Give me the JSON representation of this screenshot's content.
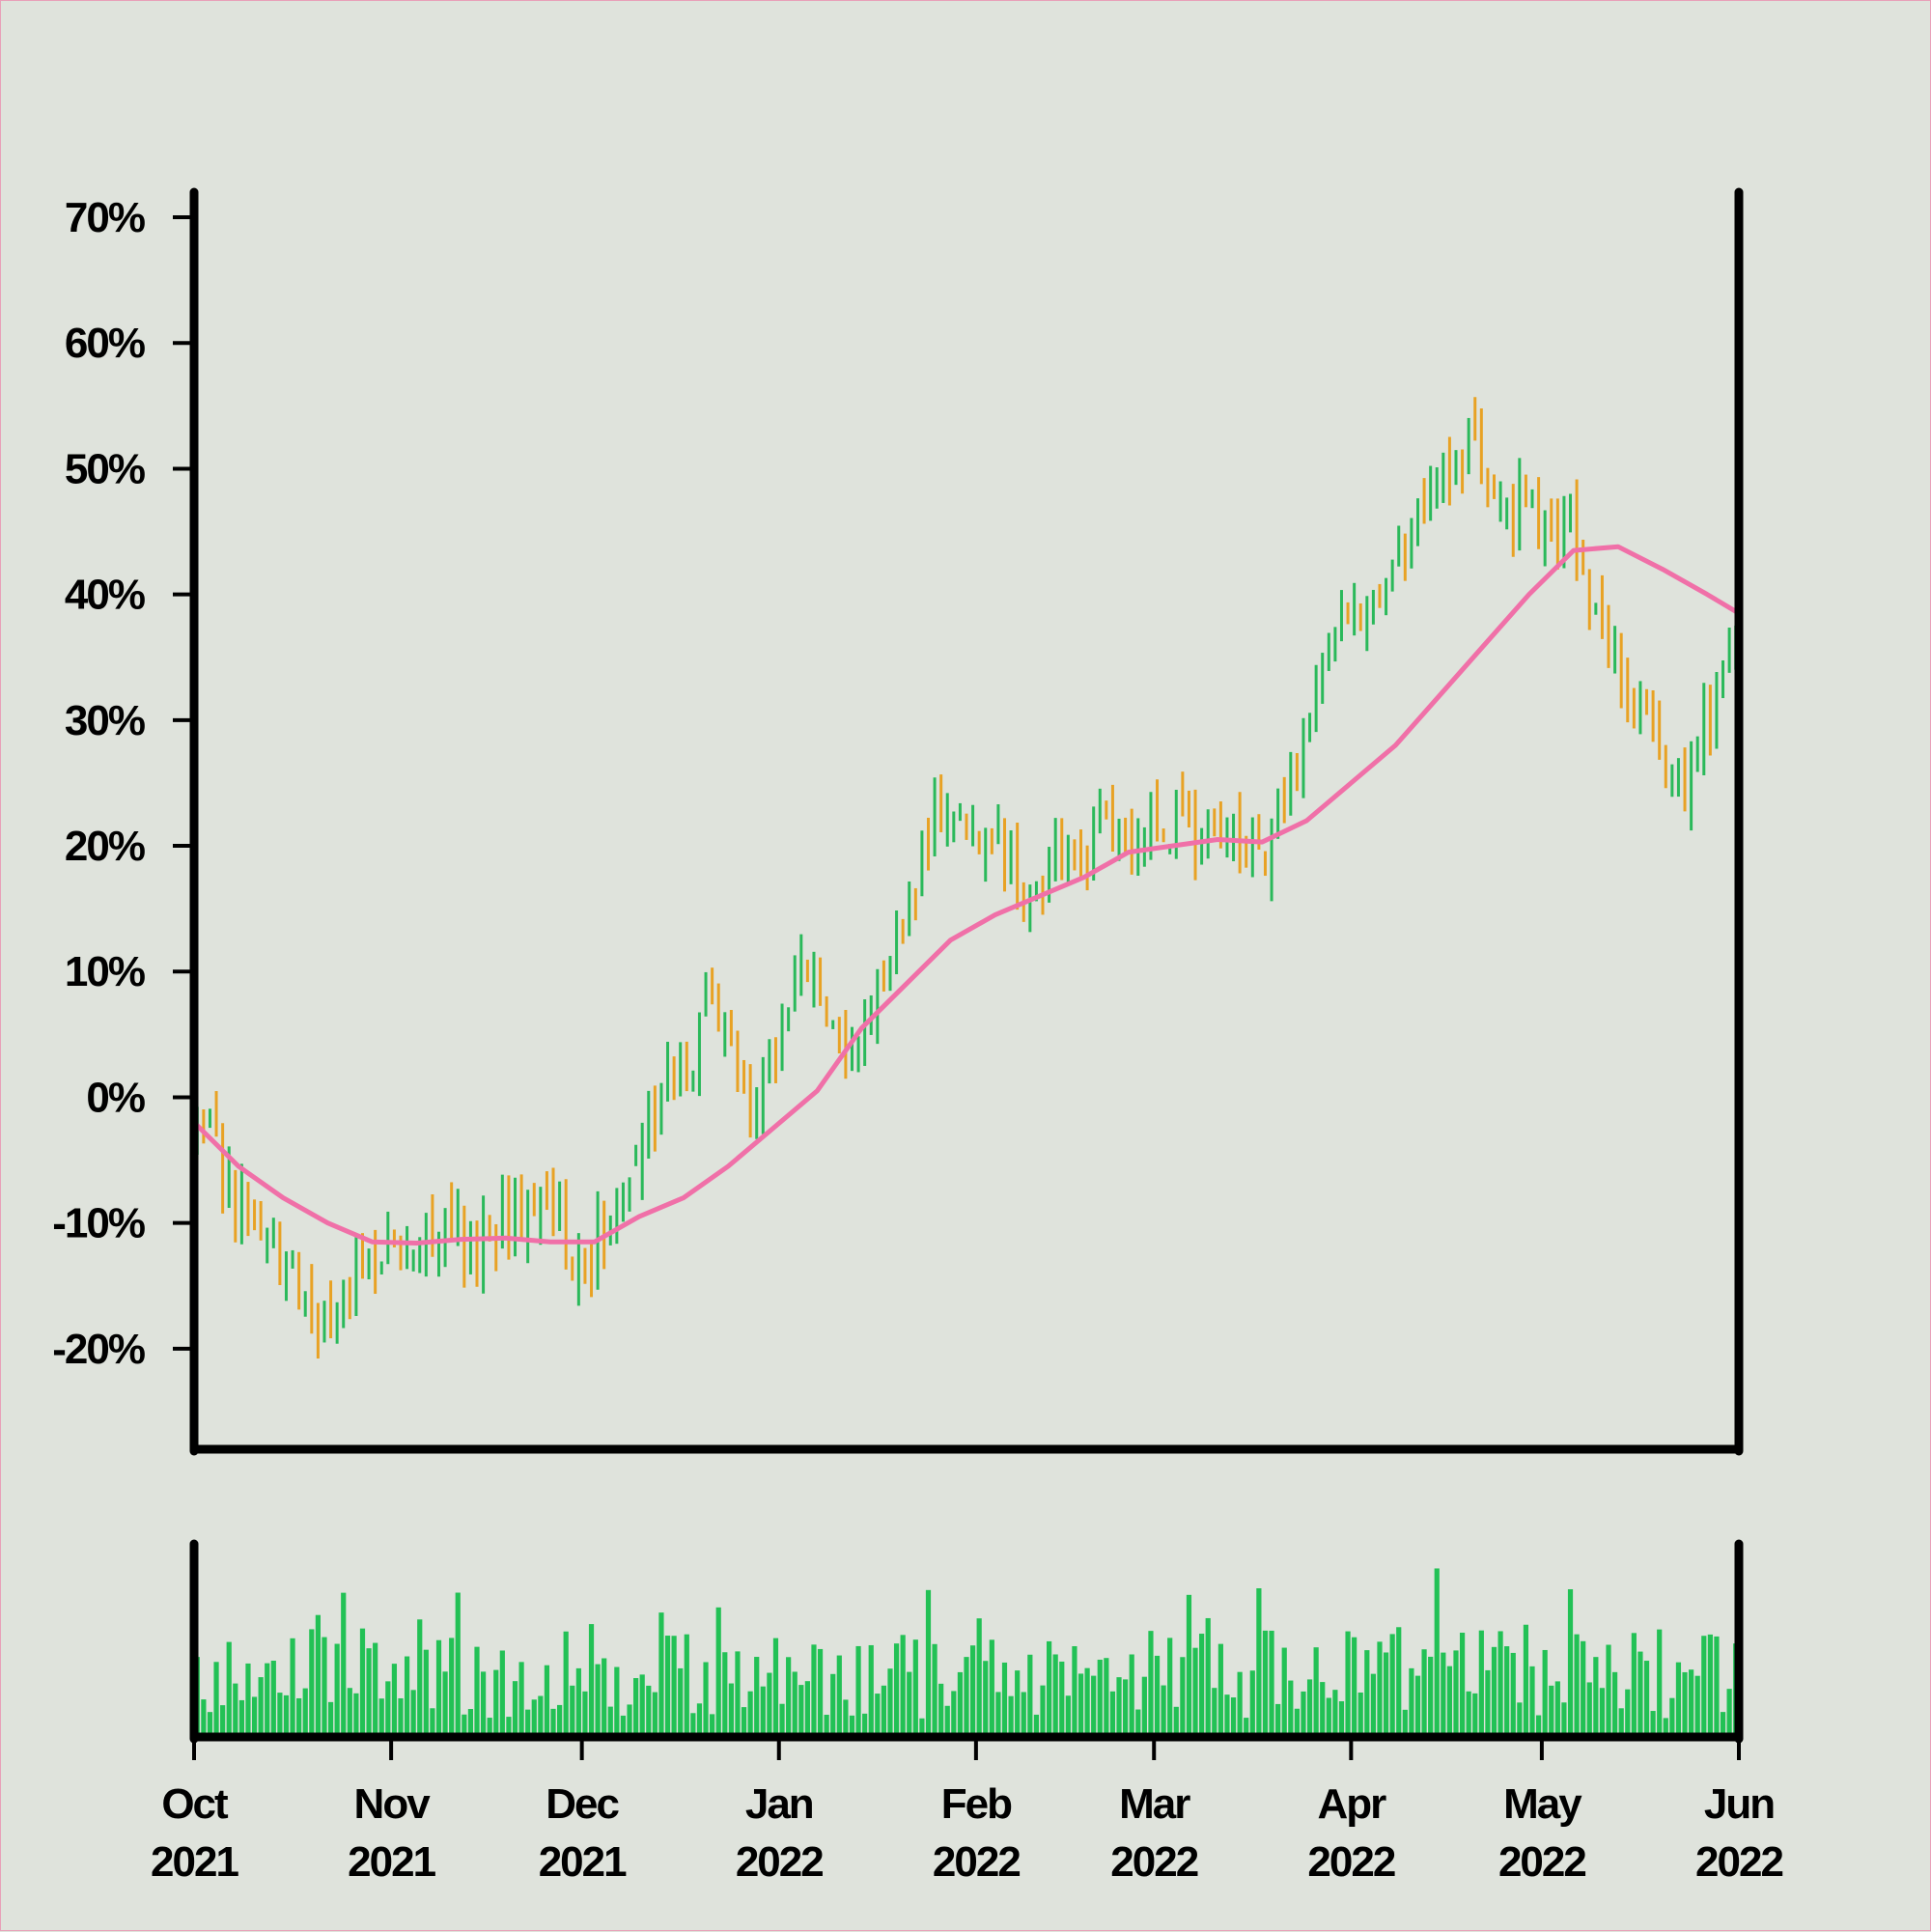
{
  "chart_data": {
    "type": "ohlc",
    "title": "",
    "xlabel": "",
    "ylabel": "",
    "x_range": [
      "2021-10-01",
      "2022-06-01"
    ],
    "y_range_pct": [
      -28,
      72
    ],
    "y_ticks": [
      {
        "value": 70,
        "label": "70%"
      },
      {
        "value": 60,
        "label": "60%"
      },
      {
        "value": 50,
        "label": "50%"
      },
      {
        "value": 40,
        "label": "40%"
      },
      {
        "value": 30,
        "label": "30%"
      },
      {
        "value": 20,
        "label": "20%"
      },
      {
        "value": 10,
        "label": "10%"
      },
      {
        "value": 0,
        "label": "0%"
      },
      {
        "value": -10,
        "label": "-10%"
      },
      {
        "value": -20,
        "label": "-20%"
      }
    ],
    "x_ticks": [
      {
        "date": "2021-10-01",
        "month": "Oct",
        "year": "2021"
      },
      {
        "date": "2021-11-01",
        "month": "Nov",
        "year": "2021"
      },
      {
        "date": "2021-12-01",
        "month": "Dec",
        "year": "2021"
      },
      {
        "date": "2022-01-01",
        "month": "Jan",
        "year": "2022"
      },
      {
        "date": "2022-02-01",
        "month": "Feb",
        "year": "2022"
      },
      {
        "date": "2022-03-01",
        "month": "Mar",
        "year": "2022"
      },
      {
        "date": "2022-04-01",
        "month": "Apr",
        "year": "2022"
      },
      {
        "date": "2022-05-01",
        "month": "May",
        "year": "2022"
      },
      {
        "date": "2022-06-01",
        "month": "Jun",
        "year": "2022"
      }
    ],
    "colors": {
      "up": "#2ab95a",
      "down": "#e8a224",
      "moving_average": "#f070a8",
      "volume": "#22c155",
      "axis": "#000000",
      "background": "#dfe3dc"
    },
    "price_path": [
      {
        "date": "2021-10-01",
        "close": -2
      },
      {
        "date": "2021-10-10",
        "close": -10
      },
      {
        "date": "2021-10-20",
        "close": -18
      },
      {
        "date": "2021-10-28",
        "close": -13
      },
      {
        "date": "2021-11-05",
        "close": -10
      },
      {
        "date": "2021-11-15",
        "close": -12
      },
      {
        "date": "2021-11-23",
        "close": -8
      },
      {
        "date": "2021-12-01",
        "close": -14
      },
      {
        "date": "2021-12-08",
        "close": -5
      },
      {
        "date": "2021-12-15",
        "close": 2
      },
      {
        "date": "2021-12-22",
        "close": 7
      },
      {
        "date": "2021-12-28",
        "close": 0
      },
      {
        "date": "2022-01-05",
        "close": 10
      },
      {
        "date": "2022-01-12",
        "close": 4
      },
      {
        "date": "2022-01-18",
        "close": 12
      },
      {
        "date": "2022-01-25",
        "close": 21
      },
      {
        "date": "2022-02-01",
        "close": 22
      },
      {
        "date": "2022-02-08",
        "close": 17
      },
      {
        "date": "2022-02-15",
        "close": 18
      },
      {
        "date": "2022-02-22",
        "close": 21
      },
      {
        "date": "2022-03-01",
        "close": 23
      },
      {
        "date": "2022-03-10",
        "close": 20
      },
      {
        "date": "2022-03-18",
        "close": 20
      },
      {
        "date": "2022-03-25",
        "close": 30
      },
      {
        "date": "2022-04-01",
        "close": 40
      },
      {
        "date": "2022-04-08",
        "close": 41
      },
      {
        "date": "2022-04-15",
        "close": 49
      },
      {
        "date": "2022-04-20",
        "close": 51
      },
      {
        "date": "2022-04-27",
        "close": 47
      },
      {
        "date": "2022-05-05",
        "close": 45
      },
      {
        "date": "2022-05-10",
        "close": 37
      },
      {
        "date": "2022-05-17",
        "close": 30
      },
      {
        "date": "2022-05-23",
        "close": 25
      },
      {
        "date": "2022-05-27",
        "close": 29
      },
      {
        "date": "2022-06-01",
        "close": 37
      }
    ],
    "moving_average": [
      {
        "date": "2021-10-01",
        "value": -2
      },
      {
        "date": "2021-10-08",
        "value": -5.5
      },
      {
        "date": "2021-10-15",
        "value": -8
      },
      {
        "date": "2021-10-22",
        "value": -10
      },
      {
        "date": "2021-10-29",
        "value": -11.5
      },
      {
        "date": "2021-11-05",
        "value": -11.6
      },
      {
        "date": "2021-11-12",
        "value": -11.3
      },
      {
        "date": "2021-11-19",
        "value": -11.2
      },
      {
        "date": "2021-11-26",
        "value": -11.5
      },
      {
        "date": "2021-12-03",
        "value": -11.5
      },
      {
        "date": "2021-12-10",
        "value": -9.5
      },
      {
        "date": "2021-12-17",
        "value": -8
      },
      {
        "date": "2021-12-24",
        "value": -5.5
      },
      {
        "date": "2021-12-31",
        "value": -2.5
      },
      {
        "date": "2022-01-07",
        "value": 0.5
      },
      {
        "date": "2022-01-14",
        "value": 5.5
      },
      {
        "date": "2022-01-21",
        "value": 9
      },
      {
        "date": "2022-01-28",
        "value": 12.5
      },
      {
        "date": "2022-02-04",
        "value": 14.5
      },
      {
        "date": "2022-02-11",
        "value": 16
      },
      {
        "date": "2022-02-18",
        "value": 17.5
      },
      {
        "date": "2022-02-25",
        "value": 19.5
      },
      {
        "date": "2022-03-04",
        "value": 20
      },
      {
        "date": "2022-03-11",
        "value": 20.5
      },
      {
        "date": "2022-03-18",
        "value": 20.3
      },
      {
        "date": "2022-03-25",
        "value": 22
      },
      {
        "date": "2022-04-01",
        "value": 25
      },
      {
        "date": "2022-04-08",
        "value": 28
      },
      {
        "date": "2022-04-15",
        "value": 32
      },
      {
        "date": "2022-04-22",
        "value": 36
      },
      {
        "date": "2022-04-29",
        "value": 40
      },
      {
        "date": "2022-05-06",
        "value": 43.5
      },
      {
        "date": "2022-05-13",
        "value": 43.8
      },
      {
        "date": "2022-05-20",
        "value": 42
      },
      {
        "date": "2022-05-27",
        "value": 40
      },
      {
        "date": "2022-06-01",
        "value": 38.5
      }
    ]
  }
}
